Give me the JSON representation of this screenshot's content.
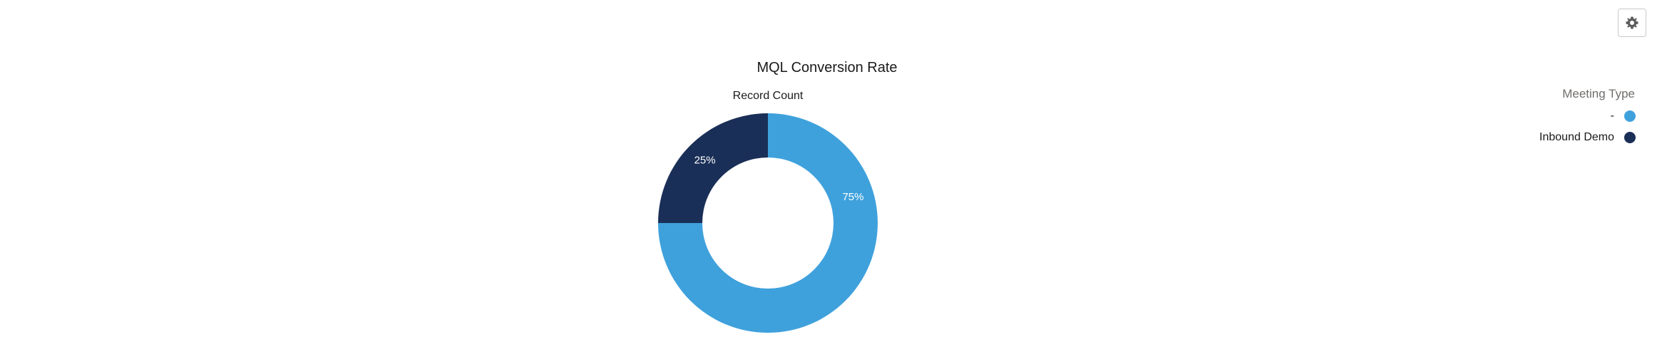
{
  "toolbar": {
    "settings_icon": "gear-icon"
  },
  "chart_data": {
    "type": "pie",
    "title": "MQL Conversion Rate",
    "measure_label": "Record Count",
    "legend_title": "Meeting Type",
    "legend_position": "top-right",
    "slices": [
      {
        "name": "-",
        "value": 75,
        "label": "75%",
        "color": "#3fa1dc"
      },
      {
        "name": "Inbound Demo",
        "value": 25,
        "label": "25%",
        "color": "#1a2f57"
      }
    ]
  }
}
